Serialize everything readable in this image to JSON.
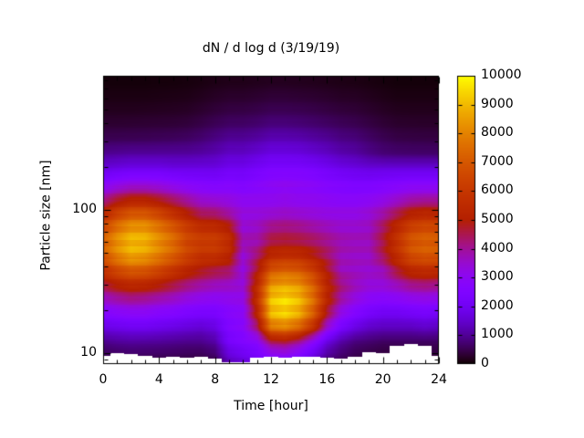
{
  "title": "dN / d log d (3/19/19)",
  "x_axis": {
    "label": "Time [hour]",
    "min": 0,
    "max": 24,
    "minor_tick_step": 1,
    "tick_values": [
      0,
      4,
      8,
      12,
      16,
      20,
      24
    ],
    "tick_labels": [
      "0",
      "4",
      "8",
      "12",
      "16",
      "20",
      "24"
    ]
  },
  "y_axis": {
    "label": "Particle size [nm]",
    "scale": "log",
    "min": 8.4,
    "max": 860,
    "tick_values": [
      100,
      10
    ],
    "tick_labels": [
      "100",
      "10"
    ]
  },
  "colorbar": {
    "min": 0,
    "max": 10000,
    "tick_values": [
      0,
      1000,
      2000,
      3000,
      4000,
      5000,
      6000,
      7000,
      8000,
      9000,
      10000
    ],
    "tick_labels": [
      "0",
      "1000",
      "2000",
      "3000",
      "4000",
      "5000",
      "6000",
      "7000",
      "8000",
      "9000",
      "10000"
    ]
  },
  "palette": {
    "name": "gnuplot black-purple-violet-magenta-red-orange-yellow",
    "stops": {
      "0": "#000000",
      "1000": "#510096",
      "2000": "#7202f2",
      "3000": "#8c07f2",
      "4000": "#a11096",
      "5000": "#b42000",
      "6000": "#c63700",
      "7000": "#d55700",
      "8000": "#e48300",
      "9000": "#f2ba00",
      "10000": "#ffff00"
    }
  },
  "chart_data": {
    "type": "heatmap",
    "title": "dN / d log d (3/19/19)",
    "xlabel": "Time [hour]",
    "ylabel": "Particle size [nm]",
    "value_range": [
      0,
      10000
    ],
    "x_hours": [
      0,
      1,
      2,
      3,
      4,
      5,
      6,
      7,
      8,
      9,
      10,
      11,
      12,
      13,
      14,
      15,
      16,
      17,
      18,
      19,
      20,
      21,
      22,
      23,
      24
    ],
    "y_sizes_nm": [
      9,
      12,
      15,
      19,
      24,
      30,
      38,
      48,
      60,
      76,
      96,
      121,
      153,
      193,
      244,
      308,
      389,
      491,
      620,
      783
    ],
    "values": [
      [
        400,
        450,
        480,
        470,
        450,
        430,
        400,
        380,
        500,
        1400,
        1700,
        2000,
        2300,
        2400,
        2000,
        1400,
        800,
        550,
        400,
        330,
        300,
        280,
        280,
        300,
        300
      ],
      [
        900,
        1000,
        1050,
        1030,
        1000,
        950,
        900,
        900,
        1100,
        2200,
        2500,
        2800,
        4400,
        4600,
        4000,
        2900,
        1700,
        1100,
        800,
        700,
        600,
        600,
        600,
        600,
        600
      ],
      [
        1700,
        1800,
        1900,
        1900,
        1800,
        1700,
        1600,
        1500,
        1700,
        2500,
        2800,
        4200,
        7600,
        7900,
        7200,
        5600,
        3400,
        2200,
        1700,
        1400,
        1300,
        1300,
        1300,
        1400,
        1300
      ],
      [
        2600,
        2800,
        2900,
        2900,
        2700,
        2600,
        2400,
        2300,
        2300,
        2700,
        2900,
        5200,
        9000,
        9400,
        8800,
        7200,
        4700,
        3200,
        2600,
        2200,
        2000,
        2000,
        2100,
        2200,
        2100
      ],
      [
        3600,
        3900,
        4100,
        4000,
        3800,
        3600,
        3300,
        3100,
        3000,
        3100,
        3200,
        5600,
        9100,
        9500,
        9000,
        7600,
        5300,
        3900,
        3300,
        2900,
        2800,
        2900,
        3100,
        3200,
        3100
      ],
      [
        4600,
        5100,
        5400,
        5300,
        5000,
        4600,
        4200,
        3900,
        3700,
        3600,
        3400,
        5400,
        8300,
        8600,
        8300,
        7200,
        5300,
        4200,
        3700,
        3400,
        3400,
        3700,
        4100,
        4200,
        4100
      ],
      [
        5800,
        6600,
        7100,
        7000,
        6500,
        5900,
        5300,
        4900,
        4600,
        4400,
        3300,
        4800,
        6900,
        7200,
        7000,
        6200,
        4900,
        3700,
        3600,
        3500,
        3700,
        4700,
        5400,
        5600,
        5500
      ],
      [
        6900,
        8000,
        8700,
        8500,
        7900,
        7200,
        6400,
        5800,
        5800,
        5300,
        3400,
        4300,
        5400,
        5600,
        5500,
        5000,
        4400,
        3700,
        3600,
        3600,
        4500,
        5600,
        6700,
        7000,
        6900
      ],
      [
        7200,
        8300,
        9000,
        8900,
        8200,
        7500,
        6500,
        6200,
        6200,
        5600,
        3800,
        3800,
        4600,
        4700,
        4600,
        4400,
        4100,
        3800,
        3700,
        3700,
        4600,
        5800,
        6900,
        7200,
        7100
      ],
      [
        6500,
        7600,
        8300,
        8300,
        7700,
        7000,
        6200,
        5600,
        5500,
        5000,
        3400,
        3600,
        4100,
        4200,
        4100,
        3900,
        3700,
        3500,
        3500,
        3600,
        4400,
        5400,
        6300,
        6600,
        6500
      ],
      [
        5200,
        6200,
        6800,
        6800,
        6300,
        5600,
        4900,
        4300,
        4200,
        3800,
        3300,
        3300,
        3400,
        3500,
        3400,
        3300,
        3200,
        3200,
        3200,
        3400,
        3800,
        4400,
        5000,
        5200,
        5100
      ],
      [
        3900,
        4500,
        4900,
        4900,
        4600,
        4200,
        3800,
        3400,
        3300,
        3200,
        3000,
        3000,
        3000,
        3100,
        3000,
        3000,
        2900,
        2800,
        2800,
        2900,
        3100,
        3400,
        3700,
        3800,
        3800
      ],
      [
        2700,
        3000,
        3200,
        3200,
        3100,
        2900,
        2700,
        2600,
        2500,
        2600,
        2500,
        2700,
        2900,
        3000,
        2900,
        2800,
        2600,
        2500,
        2400,
        2400,
        2500,
        2600,
        2700,
        2700,
        2700
      ],
      [
        1700,
        1800,
        1900,
        1900,
        1900,
        1800,
        1800,
        1800,
        1800,
        2000,
        2000,
        2200,
        2400,
        2400,
        2400,
        2300,
        2100,
        1900,
        1800,
        1700,
        1700,
        1700,
        1700,
        1700,
        1700
      ],
      [
        1000,
        1050,
        1100,
        1100,
        1100,
        1100,
        1100,
        1150,
        1250,
        1450,
        1450,
        1600,
        1800,
        1800,
        1750,
        1600,
        1450,
        1250,
        1150,
        950,
        800,
        750,
        730,
        720,
        720
      ],
      [
        560,
        570,
        580,
        590,
        610,
        630,
        670,
        760,
        900,
        1050,
        1060,
        1150,
        1300,
        1300,
        1260,
        1150,
        1050,
        900,
        840,
        690,
        560,
        480,
        460,
        450,
        450
      ],
      [
        330,
        330,
        340,
        350,
        360,
        370,
        400,
        480,
        580,
        670,
        680,
        740,
        840,
        840,
        800,
        740,
        670,
        590,
        540,
        450,
        360,
        300,
        290,
        280,
        280
      ],
      [
        190,
        190,
        190,
        200,
        210,
        220,
        240,
        300,
        370,
        430,
        440,
        480,
        540,
        540,
        520,
        480,
        430,
        380,
        350,
        290,
        230,
        190,
        180,
        180,
        180
      ],
      [
        110,
        110,
        110,
        110,
        120,
        130,
        140,
        180,
        230,
        270,
        270,
        300,
        340,
        340,
        320,
        300,
        270,
        230,
        220,
        180,
        140,
        110,
        110,
        110,
        110
      ],
      [
        60,
        60,
        60,
        60,
        70,
        70,
        80,
        100,
        130,
        150,
        150,
        170,
        190,
        190,
        180,
        170,
        150,
        130,
        120,
        100,
        80,
        60,
        60,
        60,
        60
      ]
    ],
    "no_data_cutoff_nm": [
      9.6,
      10.0,
      9.9,
      9.6,
      9.3,
      9.4,
      9.3,
      9.4,
      9.2,
      8.6,
      8.6,
      9.3,
      9.4,
      9.3,
      9.4,
      9.4,
      9.3,
      9.2,
      9.4,
      10.1,
      10.0,
      11.3,
      11.5,
      11.2,
      9.6
    ]
  }
}
